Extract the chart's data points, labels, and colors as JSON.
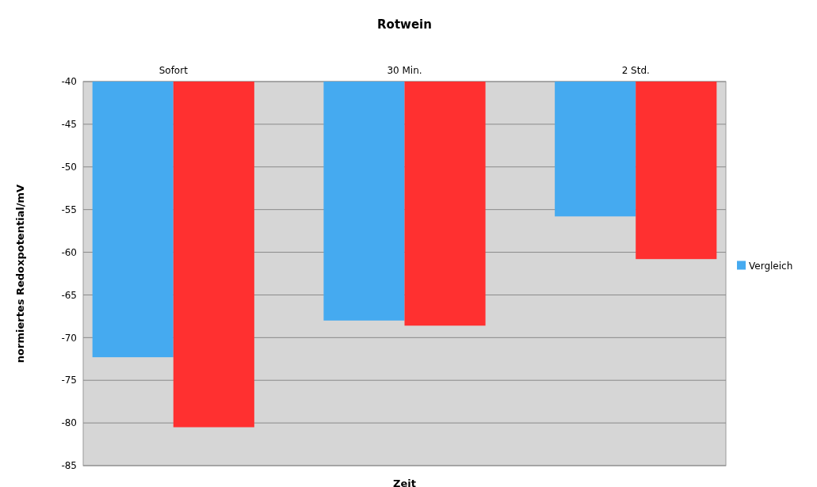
{
  "chart_data": {
    "type": "bar",
    "title": "Rotwein",
    "xlabel": "Zeit",
    "ylabel": "normiertes Redoxpotential/mV",
    "categories": [
      "Sofort",
      "30 Min.",
      "2 Std."
    ],
    "series": [
      {
        "name": "Vergleich",
        "color": "#45aaf0",
        "values": [
          -72.3,
          -68,
          -55.8
        ]
      },
      {
        "color": "#ff3030",
        "values": [
          -80.5,
          -68.6,
          -60.8
        ]
      }
    ],
    "ylim": [
      -85,
      -40
    ],
    "yticks": [
      -85,
      -80,
      -75,
      -70,
      -65,
      -60,
      -55,
      -50,
      -45,
      -40
    ],
    "grid": "y",
    "legend": "right"
  }
}
